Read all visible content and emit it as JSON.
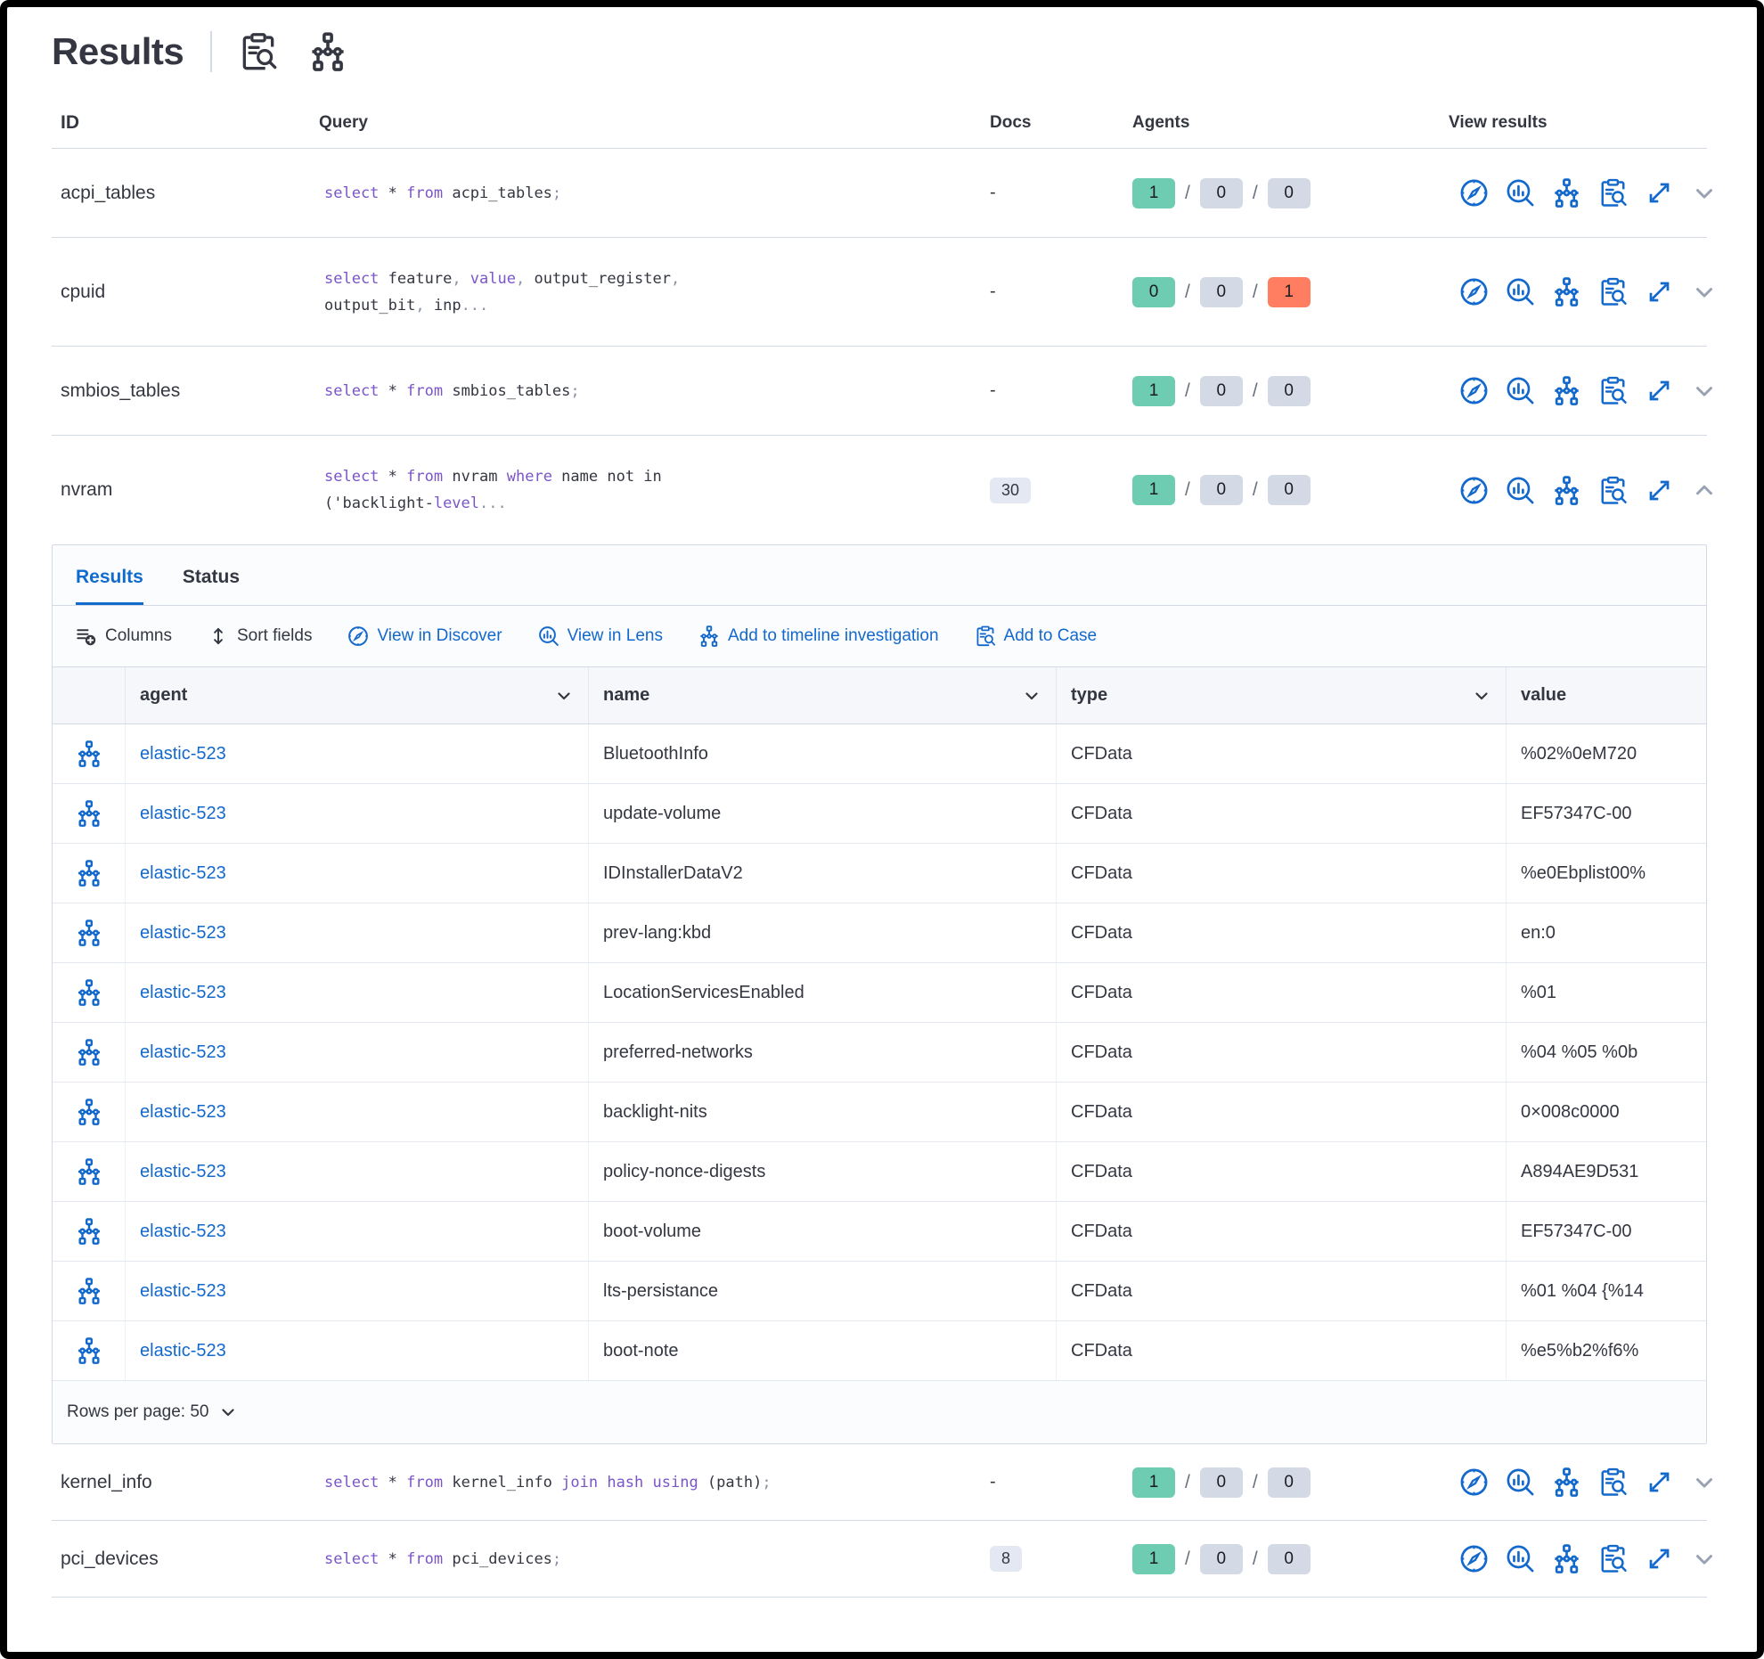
{
  "header": {
    "title": "Results"
  },
  "colors": {
    "accent_blue": "#1368cc",
    "keyword_purple": "#7b55c7",
    "success_green": "#6dccb1",
    "neutral_gray": "#d3dae6",
    "danger_red": "#ff7e62",
    "text": "#343741"
  },
  "columns": {
    "id": "ID",
    "query": "Query",
    "docs": "Docs",
    "agents": "Agents",
    "view": "View results"
  },
  "rows": [
    {
      "id": "acpi_tables",
      "docs": "-",
      "agents": [
        "1",
        "0",
        "0"
      ]
    },
    {
      "id": "cpuid",
      "docs": "-",
      "agents": [
        "0",
        "0",
        "1"
      ]
    },
    {
      "id": "smbios_tables",
      "docs": "-",
      "agents": [
        "1",
        "0",
        "0"
      ]
    },
    {
      "id": "nvram",
      "docs": "30",
      "agents": [
        "1",
        "0",
        "0"
      ]
    },
    {
      "id": "kernel_info",
      "docs": "-",
      "agents": [
        "1",
        "0",
        "0"
      ]
    },
    {
      "id": "pci_devices",
      "docs": "8",
      "agents": [
        "1",
        "0",
        "0"
      ]
    }
  ],
  "agents_separator": "/",
  "queries": {
    "acpi_tables": {
      "l1": [
        "select",
        " * ",
        "from",
        " acpi_tables",
        ";"
      ]
    },
    "cpuid": {
      "l1": [
        "select",
        " feature",
        ", ",
        "value",
        ", ",
        "output_register",
        ","
      ],
      "l2": [
        "output_bit",
        ", ",
        "inp",
        "..."
      ]
    },
    "smbios_tables": {
      "l1": [
        "select",
        " * ",
        "from",
        " smbios_tables",
        ";"
      ]
    },
    "nvram": {
      "l1": [
        "select",
        " * ",
        "from",
        " nvram ",
        "where",
        " name not in"
      ],
      "l2": [
        "('backlight-",
        "level",
        "..."
      ]
    },
    "kernel_info": {
      "l1": [
        "select",
        " * ",
        "from",
        " kernel_info ",
        "join hash using",
        " (path)",
        ";"
      ]
    },
    "pci_devices": {
      "l1": [
        "select",
        " * ",
        "from",
        " pci_devices",
        ";"
      ]
    }
  },
  "panel": {
    "tabs": [
      {
        "label": "Results"
      },
      {
        "label": "Status"
      }
    ],
    "toolbar": [
      {
        "label": "Columns"
      },
      {
        "label": "Sort fields"
      },
      {
        "label": "View in Discover"
      },
      {
        "label": "View in Lens"
      },
      {
        "label": "Add to timeline investigation"
      },
      {
        "label": "Add to Case"
      }
    ],
    "results_table": {
      "columns": [
        "agent",
        "name",
        "type",
        "value"
      ],
      "rows": [
        {
          "agent": "elastic-523",
          "name": "BluetoothInfo",
          "type": "CFData",
          "value": "%02%0eM720"
        },
        {
          "agent": "elastic-523",
          "name": "update-volume",
          "type": "CFData",
          "value": "EF57347C-00"
        },
        {
          "agent": "elastic-523",
          "name": "IDInstallerDataV2",
          "type": "CFData",
          "value": "%e0Ebplist00%"
        },
        {
          "agent": "elastic-523",
          "name": "prev-lang:kbd",
          "type": "CFData",
          "value": "en:0"
        },
        {
          "agent": "elastic-523",
          "name": "LocationServicesEnabled",
          "type": "CFData",
          "value": "%01"
        },
        {
          "agent": "elastic-523",
          "name": "preferred-networks",
          "type": "CFData",
          "value": "%04 %05 %0b"
        },
        {
          "agent": "elastic-523",
          "name": "backlight-nits",
          "type": "CFData",
          "value": "0×008c0000"
        },
        {
          "agent": "elastic-523",
          "name": "policy-nonce-digests",
          "type": "CFData",
          "value": "A894AE9D531"
        },
        {
          "agent": "elastic-523",
          "name": "boot-volume",
          "type": "CFData",
          "value": "EF57347C-00"
        },
        {
          "agent": "elastic-523",
          "name": "lts-persistance",
          "type": "CFData",
          "value": "%01 %04 {%14"
        },
        {
          "agent": "elastic-523",
          "name": "boot-note",
          "type": "CFData",
          "value": "%e5%b2%f6%"
        }
      ]
    },
    "footer": {
      "rows_per_page": "Rows per page: 50"
    }
  }
}
